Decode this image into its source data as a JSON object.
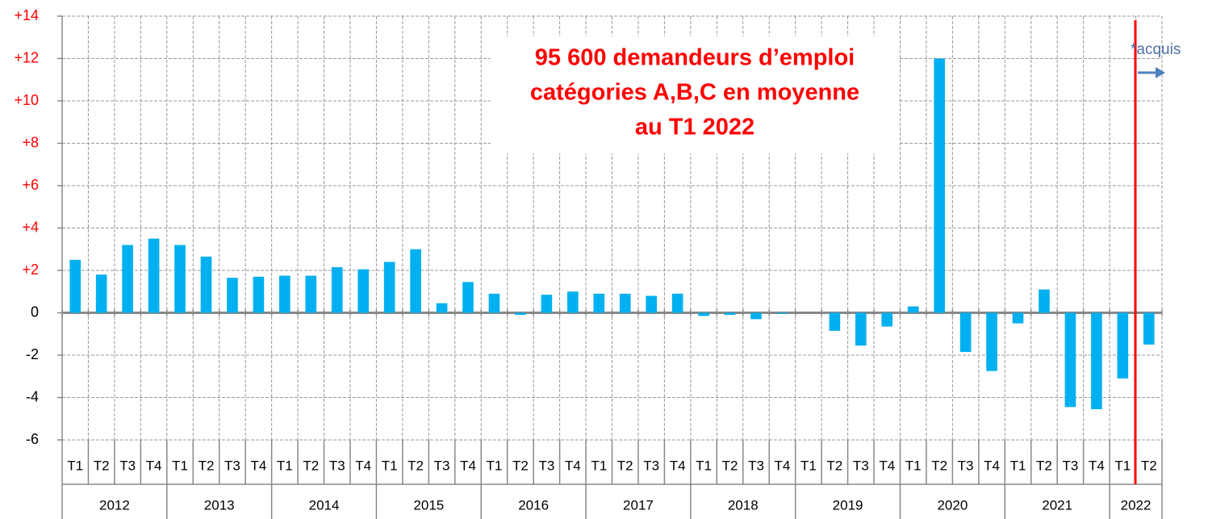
{
  "chart_data": {
    "type": "bar",
    "annotation": [
      "95 600 demandeurs d’emploi",
      "catégories A,B,C en moyenne",
      "au T1 2022"
    ],
    "note": "*acquis",
    "categories": [
      "T1",
      "T2",
      "T3",
      "T4",
      "T1",
      "T2",
      "T3",
      "T4",
      "T1",
      "T2",
      "T3",
      "T4",
      "T1",
      "T2",
      "T3",
      "T4",
      "T1",
      "T2",
      "T3",
      "T4",
      "T1",
      "T2",
      "T3",
      "T4",
      "T1",
      "T2",
      "T3",
      "T4",
      "T1",
      "T2",
      "T3",
      "T4",
      "T1",
      "T2",
      "T3",
      "T4",
      "T1",
      "T2",
      "T3",
      "T4",
      "T1",
      "T2"
    ],
    "groups": [
      "2012",
      "2013",
      "2014",
      "2015",
      "2016",
      "2017",
      "2018",
      "2019",
      "2020",
      "2021",
      "2022"
    ],
    "values": [
      2.5,
      1.8,
      3.2,
      3.5,
      3.2,
      2.65,
      1.65,
      1.7,
      1.75,
      1.75,
      2.15,
      2.05,
      2.4,
      3.0,
      0.45,
      1.45,
      0.9,
      -0.1,
      0.85,
      1.0,
      0.9,
      0.9,
      0.8,
      0.9,
      -0.15,
      -0.1,
      -0.3,
      -0.05,
      0,
      -0.85,
      -1.55,
      -0.65,
      0.3,
      12.0,
      -1.85,
      -2.75,
      -0.5,
      1.1,
      -4.45,
      -4.55,
      -3.1,
      -1.5
    ],
    "color": "#00b0f0",
    "ylim": [
      -6,
      14
    ],
    "yticks": [
      -6,
      -4,
      -2,
      0,
      {
        "value": 2,
        "label": "+2"
      },
      {
        "value": 4,
        "label": "+4"
      },
      {
        "value": 6,
        "label": "+6"
      },
      {
        "value": 8,
        "label": "+8"
      },
      {
        "value": 10,
        "label": "+10"
      },
      {
        "value": 12,
        "label": "+12"
      },
      {
        "value": 14,
        "label": "+14"
      }
    ],
    "grid": true
  }
}
